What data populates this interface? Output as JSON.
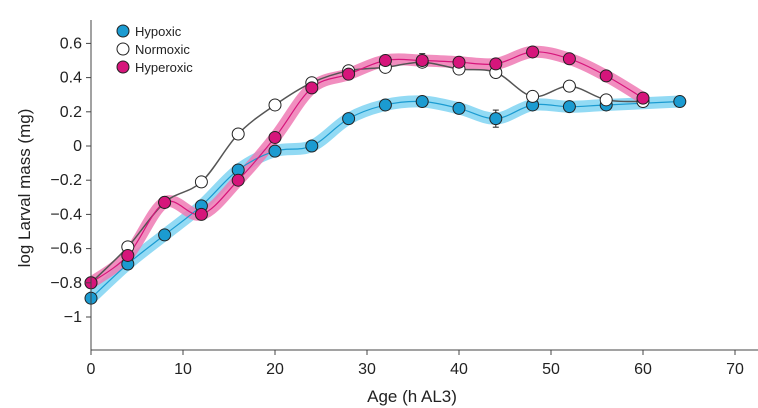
{
  "chart_data": {
    "type": "line",
    "title": "",
    "xlabel": "Age (h AL3)",
    "ylabel": "log Larval mass (mg)",
    "xlim": [
      0,
      70
    ],
    "ylim": [
      -1.2,
      0.68
    ],
    "xticks": [
      0,
      10,
      20,
      30,
      40,
      50,
      60,
      70
    ],
    "yticks": [
      -1,
      -0.8,
      -0.6,
      -0.4,
      -0.2,
      0,
      0.2,
      0.4,
      0.6
    ],
    "ytick_labels": [
      "−1",
      "−0.8",
      "−0.6",
      "−0.4",
      "−0.2",
      "0",
      "0.2",
      "0.4",
      "0.6"
    ],
    "grid": false,
    "legend": "top-left",
    "series": [
      {
        "name": "Hypoxic",
        "marker": "filled-circle",
        "color": "#1b9bd1",
        "band_color": "#7fd3f2",
        "x": [
          0,
          4,
          8,
          12,
          16,
          20,
          24,
          28,
          32,
          36,
          40,
          44,
          48,
          52,
          56,
          64
        ],
        "y": [
          -0.89,
          -0.69,
          -0.52,
          -0.35,
          -0.14,
          -0.03,
          0.0,
          0.16,
          0.24,
          0.26,
          0.22,
          0.16,
          0.24,
          0.23,
          0.24,
          0.26
        ],
        "err": [
          0.03,
          0.03,
          0.02,
          0.02,
          0.03,
          0.02,
          0.01,
          0.02,
          0.03,
          0.03,
          0.03,
          0.05,
          0.02,
          0.02,
          0.02,
          0.02
        ]
      },
      {
        "name": "Normoxic",
        "marker": "open-circle",
        "color": "#ffffff",
        "line_color": "#555555",
        "x": [
          0,
          4,
          8,
          12,
          16,
          20,
          24,
          28,
          32,
          36,
          40,
          44,
          48,
          52,
          56,
          60
        ],
        "y": [
          -0.8,
          -0.59,
          -0.33,
          -0.21,
          0.07,
          0.24,
          0.37,
          0.44,
          0.46,
          0.49,
          0.45,
          0.43,
          0.29,
          0.35,
          0.27,
          0.26
        ],
        "err": [
          0.02,
          0.02,
          0.02,
          0.02,
          0.02,
          0.02,
          0.02,
          0.02,
          0.02,
          0.02,
          0.02,
          0.02,
          0.02,
          0.02,
          0.02,
          0.02
        ]
      },
      {
        "name": "Hyperoxic",
        "marker": "filled-circle",
        "color": "#d6157b",
        "band_color": "#ee7ab4",
        "x": [
          0,
          4,
          8,
          12,
          16,
          20,
          24,
          28,
          32,
          36,
          40,
          44,
          48,
          52,
          56,
          60
        ],
        "y": [
          -0.8,
          -0.64,
          -0.33,
          -0.4,
          -0.2,
          0.05,
          0.34,
          0.42,
          0.5,
          0.5,
          0.49,
          0.48,
          0.55,
          0.51,
          0.41,
          0.28
        ],
        "err": [
          0.03,
          0.02,
          0.02,
          0.03,
          0.03,
          0.02,
          0.03,
          0.02,
          0.03,
          0.04,
          0.02,
          0.02,
          0.02,
          0.02,
          0.02,
          0.02
        ]
      }
    ]
  }
}
